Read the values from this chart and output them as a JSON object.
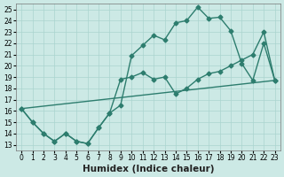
{
  "xlabel": "Humidex (Indice chaleur)",
  "xlim": [
    0,
    23
  ],
  "ylim": [
    13,
    25
  ],
  "xticks": [
    0,
    1,
    2,
    3,
    4,
    5,
    6,
    7,
    8,
    9,
    10,
    11,
    12,
    13,
    14,
    15,
    16,
    17,
    18,
    19,
    20,
    21,
    22,
    23
  ],
  "yticks": [
    13,
    14,
    15,
    16,
    17,
    18,
    19,
    20,
    21,
    22,
    23,
    24,
    25
  ],
  "bg_color": "#cce9e5",
  "grid_color": "#aad4cf",
  "line_color": "#2d7d6e",
  "line1_x": [
    0,
    1,
    2,
    3,
    4,
    5,
    6,
    7,
    8,
    9,
    10,
    11,
    12,
    13,
    14,
    15,
    16,
    17,
    18,
    19,
    20,
    21,
    22,
    23
  ],
  "line1_y": [
    16.2,
    15.0,
    14.0,
    13.3,
    14.0,
    13.3,
    13.1,
    14.5,
    15.8,
    16.5,
    20.9,
    21.8,
    22.7,
    22.3,
    23.8,
    24.0,
    25.2,
    24.2,
    24.3,
    23.1,
    20.2,
    18.7,
    22.0,
    18.7
  ],
  "line2_x": [
    0,
    1,
    2,
    3,
    4,
    5,
    6,
    7,
    8,
    9,
    10,
    11,
    12,
    13,
    14,
    15,
    16,
    17,
    18,
    19,
    20,
    21,
    22,
    23
  ],
  "line2_y": [
    16.2,
    15.0,
    14.0,
    13.3,
    14.0,
    13.3,
    13.1,
    14.5,
    15.8,
    18.8,
    19.0,
    19.4,
    18.8,
    19.0,
    17.5,
    18.0,
    18.8,
    19.3,
    19.5,
    20.0,
    20.5,
    21.0,
    23.0,
    18.7
  ],
  "line3_x": [
    0,
    23
  ],
  "line3_y": [
    16.2,
    18.7
  ],
  "marker_size": 2.5,
  "line_width": 1.0,
  "tick_fontsize": 5.5,
  "xlabel_fontsize": 7.5
}
